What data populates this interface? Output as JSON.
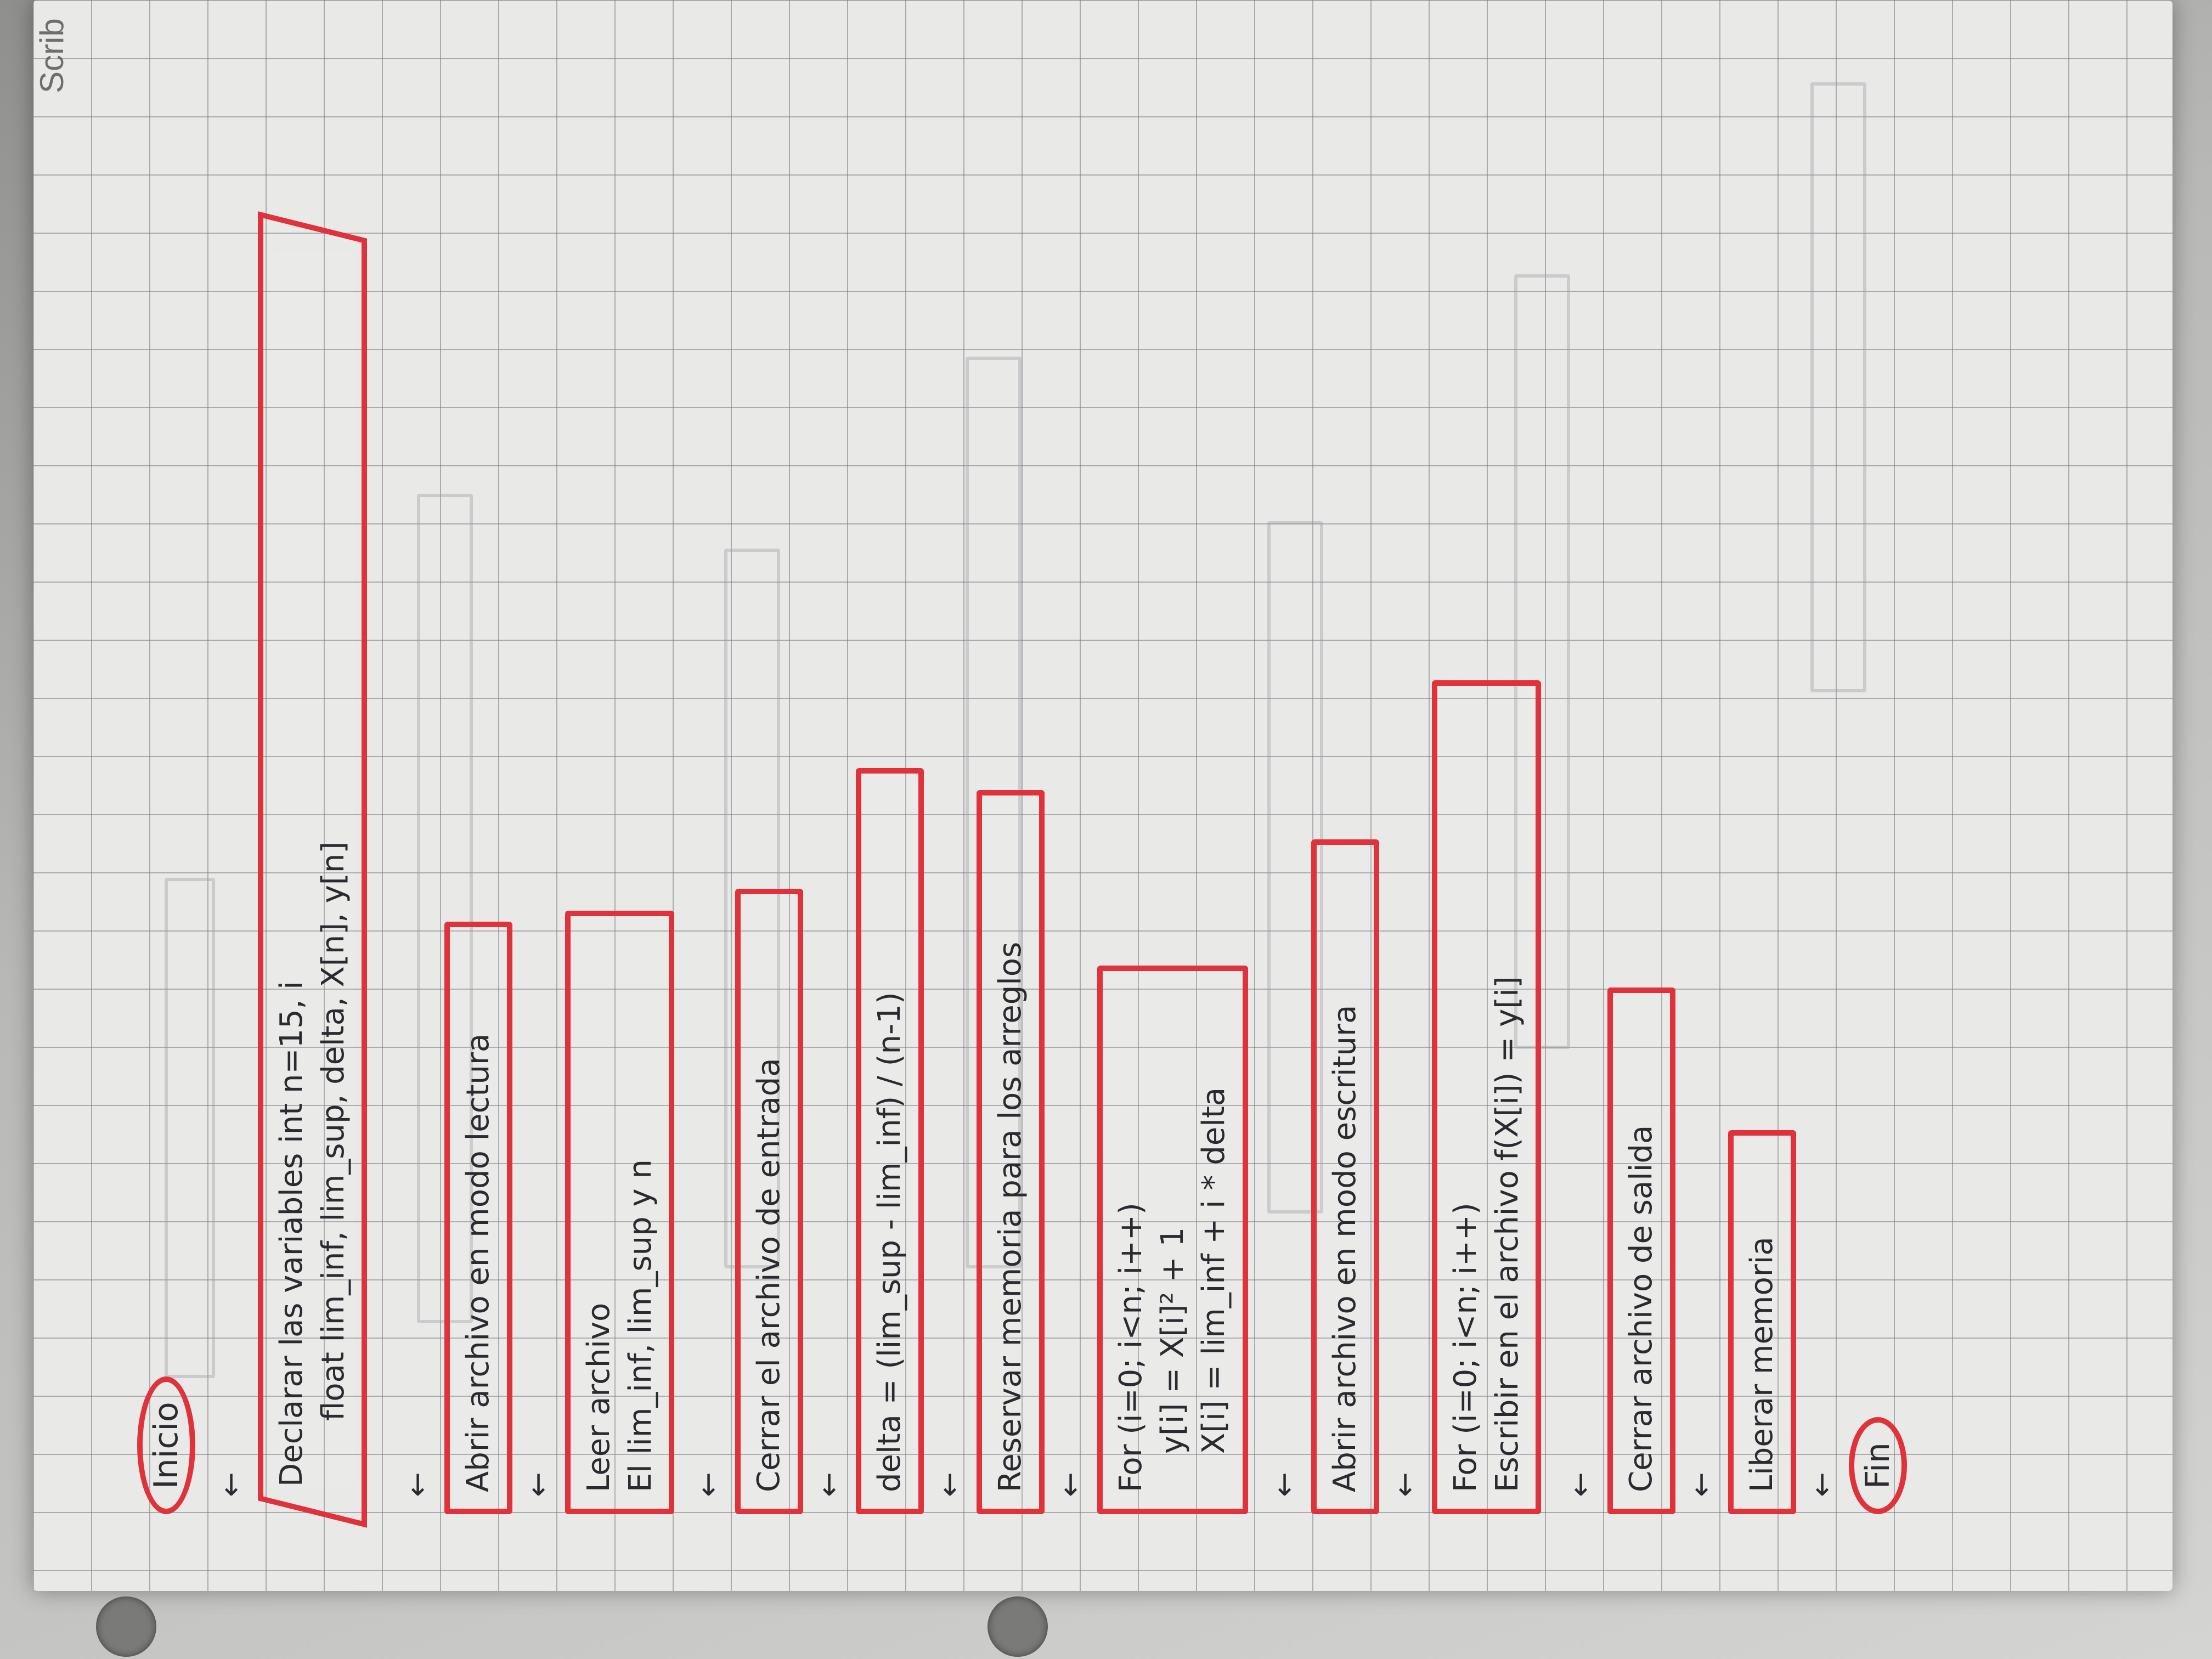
{
  "brand": "Scrib",
  "flow": {
    "inicio": "Inicio",
    "declarar": {
      "line1": "Declarar las variables int n=15, i",
      "line2": "float lim_inf, lim_sup, delta, X[n], y[n]"
    },
    "abrir_lectura": "Abrir archivo en modo lectura",
    "leer": {
      "line1": "Leer archivo",
      "line2": "El lim_inf, lim_sup y n"
    },
    "cerrar_entrada": "Cerrar el archivo de entrada",
    "delta": "delta = (lim_sup - lim_inf) / (n-1)",
    "reservar": "Reservar memoria para los arreglos",
    "for1": {
      "line1": "For (i=0; i<n; i++)",
      "line2": "y[i] = X[i]² + 1",
      "line3": "X[i] = lim_inf + i * delta"
    },
    "abrir_escritura": "Abrir archivo en modo escritura",
    "for2": {
      "line1": "For (i=0; i<n; i++)",
      "line2": "Escribir en el archivo    f(X[i]) = y[i]"
    },
    "cerrar_salida": "Cerrar archivo de salida",
    "liberar": "Liberar memoria",
    "fin": "Fin",
    "arrow": "↓"
  },
  "colors": {
    "ink": "#2a2a30",
    "marker": "#e0323b",
    "paper": "#e9e9e7"
  }
}
